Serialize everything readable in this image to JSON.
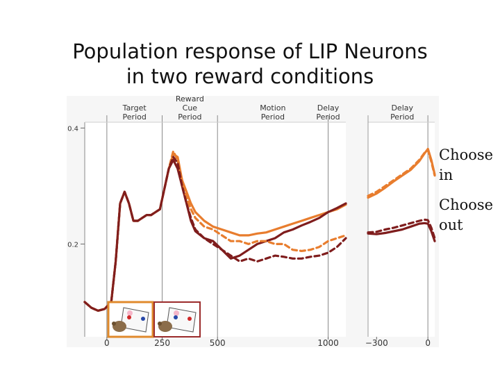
{
  "slide": {
    "title_line1": "Population response of LIP Neurons",
    "title_line2": "in two reward conditions"
  },
  "labels": {
    "choose_in": [
      "Choose",
      "in"
    ],
    "choose_out": [
      "Choose",
      "out"
    ]
  },
  "chart_data": {
    "type": "line",
    "panels": [
      {
        "name": "left",
        "x_ticks": [
          0,
          250,
          500,
          1000
        ],
        "xlim": [
          -100,
          1080
        ],
        "ylim": [
          0.04,
          0.41
        ],
        "y_ticks": [
          0.2,
          0.4
        ],
        "y_tick_labels": [
          "0.2",
          "0.4"
        ],
        "period_lines": [
          0,
          250,
          500,
          1000
        ],
        "periods": [
          {
            "lines": [
              "Target",
              "Period"
            ],
            "x": 125
          },
          {
            "lines": [
              "Reward",
              "Cue",
              "Period"
            ],
            "x": 375
          },
          {
            "lines": [
              "Motion",
              "Period"
            ],
            "x": 750
          },
          {
            "lines": [
              "Delay",
              "Period"
            ],
            "x": 1000
          }
        ]
      },
      {
        "name": "right",
        "x_ticks": [
          -300,
          0
        ],
        "x_tick_labels": [
          "−300",
          "0"
        ],
        "xlim": [
          -350,
          40
        ],
        "period_lines": [
          0
        ],
        "periods": [
          {
            "lines": [
              "Delay",
              "Period"
            ],
            "x": -150
          }
        ]
      }
    ],
    "colors": {
      "high_reward": "#e87d2e",
      "low_reward": "#7f1d1d"
    },
    "series": [
      {
        "panel": "left",
        "color_key": "high_reward",
        "dash": false,
        "x": [
          -100,
          -70,
          -40,
          -10,
          20,
          40,
          60,
          80,
          100,
          120,
          140,
          160,
          180,
          200,
          240,
          280,
          300,
          320,
          330,
          340,
          360,
          380,
          400,
          440,
          480,
          520,
          560,
          600,
          640,
          680,
          720,
          760,
          800,
          840,
          880,
          920,
          960,
          1000,
          1040,
          1080
        ],
        "y": [
          0.1,
          0.09,
          0.085,
          0.088,
          0.1,
          0.17,
          0.27,
          0.29,
          0.27,
          0.24,
          0.24,
          0.245,
          0.25,
          0.25,
          0.26,
          0.33,
          0.355,
          0.35,
          0.33,
          0.31,
          0.29,
          0.27,
          0.255,
          0.24,
          0.23,
          0.225,
          0.22,
          0.215,
          0.215,
          0.218,
          0.22,
          0.225,
          0.23,
          0.235,
          0.24,
          0.245,
          0.25,
          0.255,
          0.26,
          0.268
        ]
      },
      {
        "panel": "left",
        "color_key": "low_reward",
        "dash": false,
        "x": [
          -100,
          -70,
          -40,
          -10,
          20,
          40,
          60,
          80,
          100,
          120,
          140,
          160,
          180,
          200,
          240,
          280,
          300,
          320,
          340,
          360,
          380,
          400,
          440,
          480,
          520,
          560,
          600,
          640,
          680,
          720,
          760,
          800,
          840,
          880,
          920,
          960,
          1000,
          1040,
          1080
        ],
        "y": [
          0.1,
          0.09,
          0.085,
          0.088,
          0.1,
          0.17,
          0.27,
          0.29,
          0.27,
          0.24,
          0.24,
          0.245,
          0.25,
          0.25,
          0.26,
          0.33,
          0.345,
          0.33,
          0.3,
          0.27,
          0.24,
          0.222,
          0.21,
          0.205,
          0.19,
          0.175,
          0.18,
          0.19,
          0.2,
          0.205,
          0.21,
          0.22,
          0.225,
          0.232,
          0.238,
          0.245,
          0.255,
          0.262,
          0.27
        ]
      },
      {
        "panel": "left",
        "color_key": "high_reward",
        "dash": true,
        "x": [
          -100,
          -70,
          -40,
          -10,
          20,
          40,
          60,
          80,
          100,
          120,
          140,
          160,
          180,
          200,
          240,
          280,
          300,
          320,
          340,
          360,
          380,
          400,
          440,
          480,
          520,
          560,
          600,
          640,
          680,
          720,
          760,
          800,
          840,
          880,
          920,
          960,
          1000,
          1040,
          1080
        ],
        "y": [
          0.1,
          0.09,
          0.085,
          0.088,
          0.1,
          0.17,
          0.27,
          0.29,
          0.27,
          0.24,
          0.24,
          0.245,
          0.25,
          0.25,
          0.26,
          0.33,
          0.36,
          0.345,
          0.31,
          0.28,
          0.26,
          0.245,
          0.23,
          0.225,
          0.215,
          0.205,
          0.205,
          0.2,
          0.205,
          0.205,
          0.2,
          0.2,
          0.19,
          0.188,
          0.19,
          0.195,
          0.205,
          0.21,
          0.215
        ]
      },
      {
        "panel": "left",
        "color_key": "low_reward",
        "dash": true,
        "x": [
          -100,
          -70,
          -40,
          -10,
          20,
          40,
          60,
          80,
          100,
          120,
          140,
          160,
          180,
          200,
          240,
          280,
          300,
          320,
          340,
          360,
          380,
          400,
          440,
          480,
          520,
          560,
          600,
          640,
          680,
          720,
          760,
          800,
          840,
          880,
          920,
          960,
          1000,
          1040,
          1080
        ],
        "y": [
          0.1,
          0.09,
          0.085,
          0.088,
          0.1,
          0.17,
          0.27,
          0.29,
          0.27,
          0.24,
          0.24,
          0.245,
          0.25,
          0.25,
          0.26,
          0.33,
          0.35,
          0.34,
          0.3,
          0.27,
          0.245,
          0.225,
          0.21,
          0.2,
          0.19,
          0.18,
          0.17,
          0.175,
          0.17,
          0.175,
          0.18,
          0.178,
          0.175,
          0.175,
          0.178,
          0.18,
          0.185,
          0.195,
          0.21
        ]
      },
      {
        "panel": "right",
        "color_key": "high_reward",
        "dash": false,
        "x": [
          -350,
          -300,
          -250,
          -200,
          -150,
          -100,
          -50,
          -20,
          0,
          20,
          40
        ],
        "y": [
          0.28,
          0.287,
          0.297,
          0.308,
          0.318,
          0.328,
          0.343,
          0.356,
          0.364,
          0.345,
          0.32
        ]
      },
      {
        "panel": "right",
        "color_key": "high_reward",
        "dash": true,
        "x": [
          -350,
          -300,
          -250,
          -200,
          -150,
          -100,
          -50,
          -20,
          0,
          20,
          40
        ],
        "y": [
          0.283,
          0.29,
          0.3,
          0.31,
          0.32,
          0.33,
          0.345,
          0.357,
          0.362,
          0.342,
          0.318
        ]
      },
      {
        "panel": "right",
        "color_key": "low_reward",
        "dash": false,
        "x": [
          -350,
          -300,
          -250,
          -200,
          -150,
          -100,
          -50,
          -20,
          0,
          20,
          40
        ],
        "y": [
          0.218,
          0.217,
          0.219,
          0.222,
          0.225,
          0.23,
          0.235,
          0.236,
          0.235,
          0.222,
          0.205
        ]
      },
      {
        "panel": "right",
        "color_key": "low_reward",
        "dash": true,
        "x": [
          -350,
          -300,
          -250,
          -200,
          -150,
          -100,
          -50,
          -20,
          0,
          20,
          40
        ],
        "y": [
          0.22,
          0.221,
          0.225,
          0.228,
          0.232,
          0.236,
          0.24,
          0.242,
          0.241,
          0.228,
          0.21
        ]
      }
    ]
  }
}
